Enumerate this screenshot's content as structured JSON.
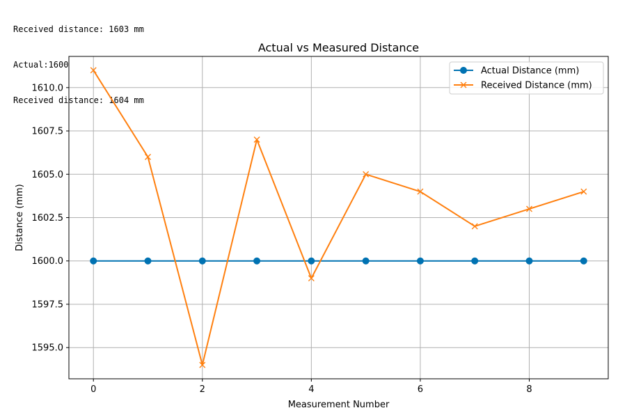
{
  "console": {
    "lines": [
      "Received distance: 1603 mm",
      "Actual:1600",
      "Received distance: 1604 mm"
    ]
  },
  "colors": {
    "actual": "#0072b2",
    "received": "#ff7f0e",
    "grid": "#b0b0b0",
    "axis": "#000000"
  },
  "chart_data": {
    "type": "line",
    "title": "Actual vs Measured Distance",
    "xlabel": "Measurement Number",
    "ylabel": "Distance (mm)",
    "xlim": [
      -0.45,
      9.45
    ],
    "ylim": [
      1593.2,
      1611.8
    ],
    "xticks": [
      0,
      2,
      4,
      6,
      8
    ],
    "xtick_labels": [
      "0",
      "2",
      "4",
      "6",
      "8"
    ],
    "yticks": [
      1595.0,
      1597.5,
      1600.0,
      1602.5,
      1605.0,
      1607.5,
      1610.0
    ],
    "ytick_labels": [
      "1595.0",
      "1597.5",
      "1600.0",
      "1602.5",
      "1605.0",
      "1607.5",
      "1610.0"
    ],
    "grid": true,
    "legend_position": "top-right",
    "x": [
      0,
      1,
      2,
      3,
      4,
      5,
      6,
      7,
      8,
      9
    ],
    "series": [
      {
        "name": "Actual Distance (mm)",
        "marker": "circle",
        "color": "#0072b2",
        "values": [
          1600,
          1600,
          1600,
          1600,
          1600,
          1600,
          1600,
          1600,
          1600,
          1600
        ]
      },
      {
        "name": "Received Distance (mm)",
        "marker": "x",
        "color": "#ff7f0e",
        "values": [
          1611,
          1606,
          1594,
          1607,
          1599,
          1605,
          1604,
          1602,
          1603,
          1604
        ]
      }
    ]
  }
}
